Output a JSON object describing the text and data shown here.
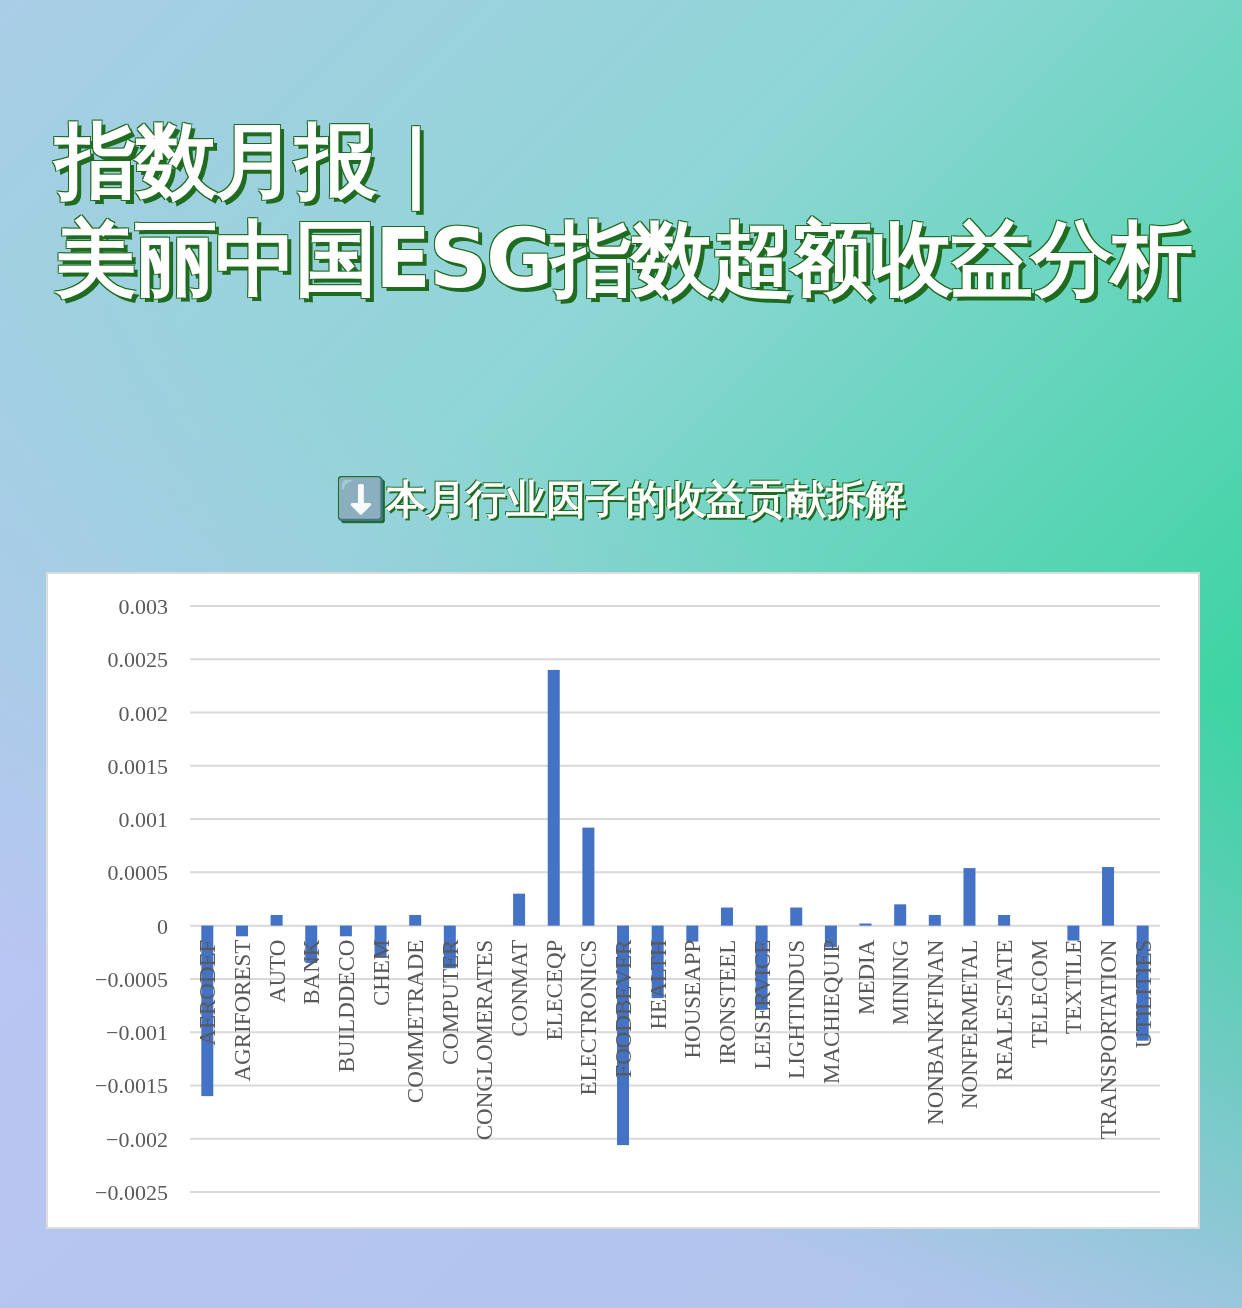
{
  "chart_data": {
    "type": "bar",
    "title": "指数月报｜美丽中国ESG指数超额收益分析",
    "subtitle": "⬇️本月行业因子的收益贡献拆解",
    "categories": [
      "AERODEF",
      "AGRIFOREST",
      "AUTO",
      "BANK",
      "BUILDDECO",
      "CHEM",
      "COMMETRADE",
      "COMPUTER",
      "CONGLOMERATES",
      "CONMAT",
      "ELECEQP",
      "ELECTRONICS",
      "FOODBEVER",
      "HEALTH",
      "HOUSEAPP",
      "IRONSTEEL",
      "LEISERVICE",
      "LIGHTINDUS",
      "MACHIEQUIP",
      "MEDIA",
      "MINING",
      "NONBANKFINAN",
      "NONFERMETAL",
      "REALESTATE",
      "TELECOM",
      "TEXTILE",
      "TRANSPORTATION",
      "UTILITIES"
    ],
    "values": [
      -0.0016,
      -0.0001,
      0.0001,
      -0.00035,
      -0.0001,
      -0.0003,
      0.0001,
      -0.0004,
      0,
      0.0003,
      0.0024,
      0.00092,
      -0.00206,
      -0.00068,
      -0.00015,
      0.00017,
      -0.00079,
      0.00017,
      -0.0002,
      2e-05,
      0.0002,
      0.0001,
      0.00054,
      0.0001,
      0,
      -0.00014,
      0.00055,
      -0.00108
    ],
    "color": "#4472c4",
    "ylim": [
      -0.0025,
      0.003
    ],
    "yticks": [
      -0.0025,
      -0.002,
      -0.0015,
      -0.001,
      -0.0005,
      0,
      0.0005,
      0.001,
      0.0015,
      0.002,
      0.0025,
      0.003
    ],
    "grid": "y"
  }
}
